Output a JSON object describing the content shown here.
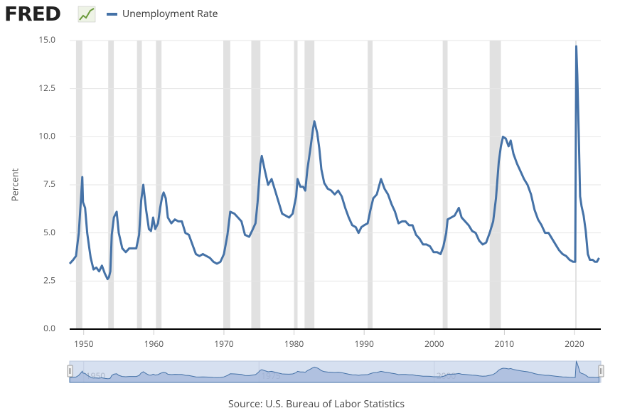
{
  "chart_data": {
    "type": "line",
    "logo": "FRED",
    "ylabel": "Percent",
    "source": "Source: U.S. Bureau of Labor Statistics",
    "xlim": [
      1948,
      2023.75
    ],
    "ylim": [
      0,
      15
    ],
    "xticks": [
      1950,
      1960,
      1970,
      1980,
      1990,
      2000,
      2010,
      2020
    ],
    "yticks": [
      {
        "value": 0,
        "label": "0.0"
      },
      {
        "value": 2.5,
        "label": "2.5"
      },
      {
        "value": 5,
        "label": "5.0"
      },
      {
        "value": 7.5,
        "label": "7.5"
      },
      {
        "value": 10,
        "label": "10.0"
      },
      {
        "value": 12.5,
        "label": "12.5"
      },
      {
        "value": 15,
        "label": "15.0"
      }
    ],
    "grid": true,
    "recession_color": "#e1e1e1",
    "recessions": [
      [
        1948.9,
        1949.8
      ],
      [
        1953.5,
        1954.3
      ],
      [
        1957.6,
        1958.3
      ],
      [
        1960.3,
        1961.1
      ],
      [
        1969.9,
        1970.9
      ],
      [
        1973.9,
        1975.2
      ],
      [
        1980.0,
        1980.5
      ],
      [
        1981.5,
        1982.9
      ],
      [
        1990.5,
        1991.2
      ],
      [
        2001.2,
        2001.9
      ],
      [
        2007.9,
        2009.5
      ],
      [
        2020.1,
        2020.3
      ]
    ],
    "navigator_ticks": [
      1950,
      1975,
      2000
    ],
    "x": [
      1948.0,
      1948.5,
      1948.9,
      1949.3,
      1949.6,
      1949.8,
      1949.9,
      1950.2,
      1950.5,
      1950.8,
      1951.0,
      1951.4,
      1951.8,
      1952.2,
      1952.6,
      1953.0,
      1953.4,
      1953.6,
      1953.8,
      1954.0,
      1954.3,
      1954.7,
      1955.0,
      1955.5,
      1956.0,
      1956.5,
      1957.0,
      1957.5,
      1957.9,
      1958.2,
      1958.5,
      1958.9,
      1959.3,
      1959.6,
      1959.9,
      1960.2,
      1960.6,
      1960.9,
      1961.2,
      1961.4,
      1961.7,
      1962.0,
      1962.5,
      1963.0,
      1963.5,
      1964.0,
      1964.5,
      1965.0,
      1965.5,
      1966.0,
      1966.5,
      1967.0,
      1967.5,
      1968.0,
      1968.5,
      1969.0,
      1969.5,
      1970.0,
      1970.5,
      1970.9,
      1971.5,
      1972.0,
      1972.5,
      1973.0,
      1973.6,
      1974.0,
      1974.5,
      1974.8,
      1975.2,
      1975.4,
      1975.8,
      1976.3,
      1976.8,
      1977.3,
      1977.8,
      1978.3,
      1978.8,
      1979.3,
      1979.8,
      1980.3,
      1980.5,
      1980.9,
      1981.3,
      1981.6,
      1981.9,
      1982.3,
      1982.7,
      1982.9,
      1983.3,
      1983.6,
      1983.9,
      1984.3,
      1984.8,
      1985.3,
      1985.8,
      1986.3,
      1986.8,
      1987.3,
      1987.8,
      1988.3,
      1988.8,
      1989.2,
      1989.6,
      1990.0,
      1990.5,
      1990.9,
      1991.3,
      1991.8,
      1992.4,
      1992.9,
      1993.4,
      1993.9,
      1994.4,
      1994.9,
      1995.4,
      1995.9,
      1996.4,
      1996.9,
      1997.4,
      1997.9,
      1998.4,
      1998.9,
      1999.4,
      1999.9,
      2000.4,
      2000.9,
      2001.3,
      2001.7,
      2001.9,
      2002.4,
      2002.9,
      2003.5,
      2003.9,
      2004.4,
      2004.9,
      2005.4,
      2005.9,
      2006.4,
      2006.9,
      2007.4,
      2007.9,
      2008.4,
      2008.8,
      2009.2,
      2009.5,
      2009.8,
      2010.2,
      2010.6,
      2010.9,
      2011.3,
      2011.8,
      2012.3,
      2012.8,
      2013.3,
      2013.8,
      2014.3,
      2014.8,
      2015.3,
      2015.8,
      2016.3,
      2016.8,
      2017.3,
      2017.8,
      2018.3,
      2018.8,
      2019.3,
      2019.8,
      2020.1,
      2020.25,
      2020.4,
      2020.6,
      2020.8,
      2021.0,
      2021.3,
      2021.6,
      2021.9,
      2022.2,
      2022.6,
      2022.9,
      2023.2,
      2023.5
    ],
    "series": [
      {
        "name": "Unemployment Rate",
        "color": "#4572a7",
        "values": [
          3.4,
          3.6,
          3.8,
          5.0,
          6.7,
          7.9,
          6.6,
          6.3,
          5.0,
          4.2,
          3.7,
          3.1,
          3.2,
          3.0,
          3.3,
          2.9,
          2.6,
          2.7,
          3.0,
          4.9,
          5.8,
          6.1,
          5.0,
          4.2,
          4.0,
          4.2,
          4.2,
          4.2,
          4.9,
          6.7,
          7.5,
          6.2,
          5.2,
          5.1,
          5.8,
          5.2,
          5.5,
          6.3,
          6.9,
          7.1,
          6.8,
          5.8,
          5.5,
          5.7,
          5.6,
          5.6,
          5.0,
          4.9,
          4.4,
          3.9,
          3.8,
          3.9,
          3.8,
          3.7,
          3.5,
          3.4,
          3.5,
          3.9,
          4.9,
          6.1,
          6.0,
          5.8,
          5.6,
          4.9,
          4.8,
          5.1,
          5.5,
          6.6,
          8.6,
          9.0,
          8.3,
          7.5,
          7.8,
          7.2,
          6.6,
          6.0,
          5.9,
          5.8,
          6.0,
          6.9,
          7.8,
          7.4,
          7.4,
          7.2,
          8.3,
          9.3,
          10.4,
          10.8,
          10.2,
          9.4,
          8.3,
          7.6,
          7.3,
          7.2,
          7.0,
          7.2,
          6.9,
          6.3,
          5.8,
          5.4,
          5.3,
          5.0,
          5.3,
          5.4,
          5.5,
          6.2,
          6.8,
          7.0,
          7.8,
          7.3,
          7.0,
          6.5,
          6.1,
          5.5,
          5.6,
          5.6,
          5.4,
          5.4,
          4.9,
          4.7,
          4.4,
          4.4,
          4.3,
          4.0,
          4.0,
          3.9,
          4.3,
          5.0,
          5.7,
          5.8,
          5.9,
          6.3,
          5.8,
          5.6,
          5.4,
          5.1,
          5.0,
          4.6,
          4.4,
          4.5,
          5.0,
          5.6,
          6.8,
          8.7,
          9.5,
          10.0,
          9.9,
          9.5,
          9.8,
          9.1,
          8.6,
          8.2,
          7.8,
          7.5,
          7.0,
          6.2,
          5.7,
          5.4,
          5.0,
          5.0,
          4.7,
          4.4,
          4.1,
          3.9,
          3.8,
          3.6,
          3.5,
          3.5,
          14.7,
          13.2,
          10.2,
          6.9,
          6.4,
          5.9,
          5.1,
          3.9,
          3.6,
          3.6,
          3.5,
          3.5,
          3.7
        ]
      }
    ]
  }
}
